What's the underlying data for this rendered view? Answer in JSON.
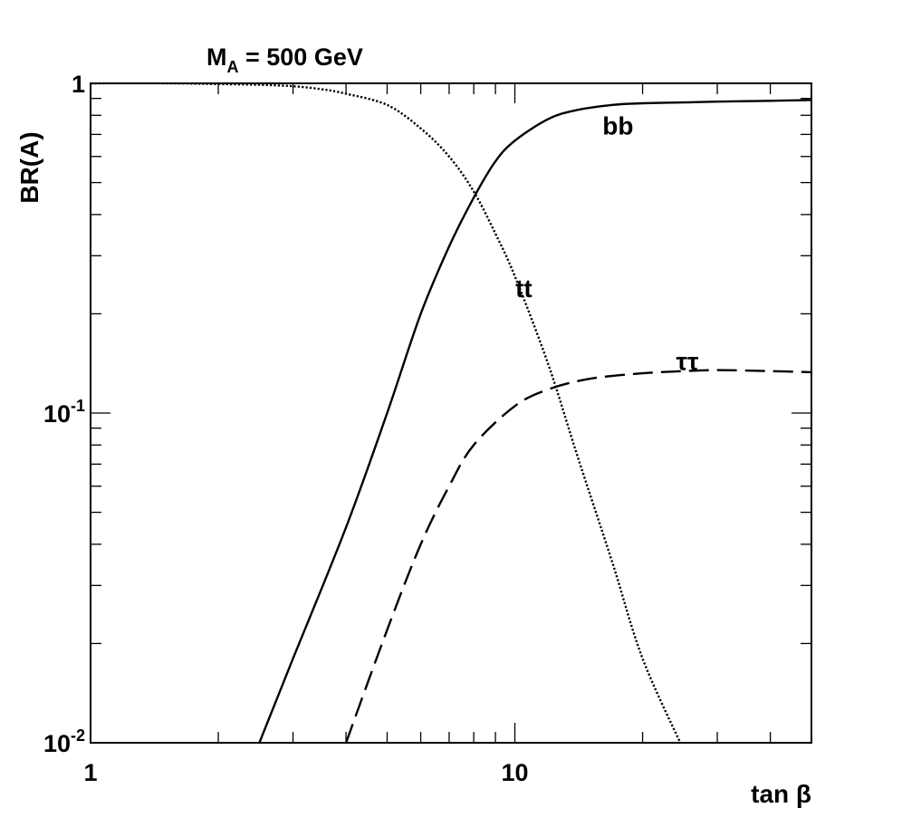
{
  "chart_data": {
    "type": "line",
    "title": "M_A = 500 GeV",
    "title_main": "M",
    "title_sub": "A",
    "title_rest": " = 500 GeV",
    "xlabel": "tan β",
    "ylabel": "BR(A)",
    "xscale": "log",
    "yscale": "log",
    "xlim": [
      1,
      50
    ],
    "ylim": [
      0.01,
      1
    ],
    "grid": false,
    "legend": "none",
    "x_ticks": [
      {
        "value": 1,
        "label": "1"
      },
      {
        "value": 10,
        "label": "10"
      }
    ],
    "y_ticks": [
      {
        "value": 1,
        "base": "1",
        "exp": ""
      },
      {
        "value": 0.1,
        "base": "10",
        "exp": "-1"
      },
      {
        "value": 0.01,
        "base": "10",
        "exp": "-2"
      }
    ],
    "series": [
      {
        "name": "bb",
        "style": "solid",
        "x": [
          2.5,
          3,
          4,
          5,
          6,
          7,
          8,
          9,
          10,
          12,
          14,
          17,
          20,
          25,
          30,
          40,
          50
        ],
        "y": [
          0.01,
          0.018,
          0.045,
          0.1,
          0.2,
          0.32,
          0.45,
          0.58,
          0.67,
          0.78,
          0.83,
          0.86,
          0.87,
          0.875,
          0.88,
          0.885,
          0.89
        ]
      },
      {
        "name": "tt",
        "style": "dotted",
        "x": [
          1,
          1.5,
          2,
          2.5,
          3,
          3.5,
          4,
          5,
          6,
          7,
          8,
          9,
          10,
          12,
          14,
          17,
          20,
          25
        ],
        "y": [
          1,
          1,
          0.995,
          0.99,
          0.98,
          0.96,
          0.93,
          0.86,
          0.73,
          0.6,
          0.47,
          0.35,
          0.26,
          0.14,
          0.075,
          0.035,
          0.018,
          0.0095
        ]
      },
      {
        "name": "ττ",
        "style": "dashed",
        "x": [
          4,
          5,
          6,
          7,
          8,
          10,
          12,
          15,
          20,
          25,
          30,
          40,
          50
        ],
        "y": [
          0.01,
          0.022,
          0.04,
          0.06,
          0.08,
          0.105,
          0.118,
          0.127,
          0.132,
          0.134,
          0.135,
          0.134,
          0.133
        ]
      }
    ],
    "annotations": [
      {
        "text": "bb",
        "x": 17.5,
        "y": 0.7
      },
      {
        "text": "tt",
        "x": 10.5,
        "y": 0.225
      },
      {
        "text": "ττ",
        "x": 25.5,
        "y": 0.135
      }
    ]
  }
}
